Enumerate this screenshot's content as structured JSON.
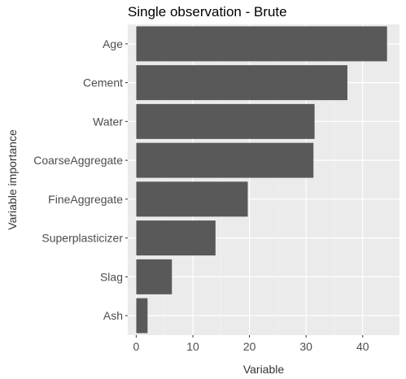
{
  "chart_data": {
    "type": "bar",
    "orientation": "horizontal",
    "title": "Single observation - Brute",
    "xlabel": "Variable",
    "ylabel": "Variable importance",
    "categories": [
      "Age",
      "Cement",
      "Water",
      "CoarseAggregate",
      "FineAggregate",
      "Superplasticizer",
      "Slag",
      "Ash"
    ],
    "values": [
      44.3,
      37.3,
      31.5,
      31.3,
      19.7,
      14.0,
      6.3,
      2.0
    ],
    "xlim": [
      -1.5,
      46.5
    ],
    "xticks": [
      0,
      10,
      20,
      30,
      40
    ],
    "grid": true,
    "colors": {
      "panel": "#ebebeb",
      "bar": "#595959",
      "grid_major": "#ffffff",
      "grid_minor": "#f4f4f4"
    }
  }
}
